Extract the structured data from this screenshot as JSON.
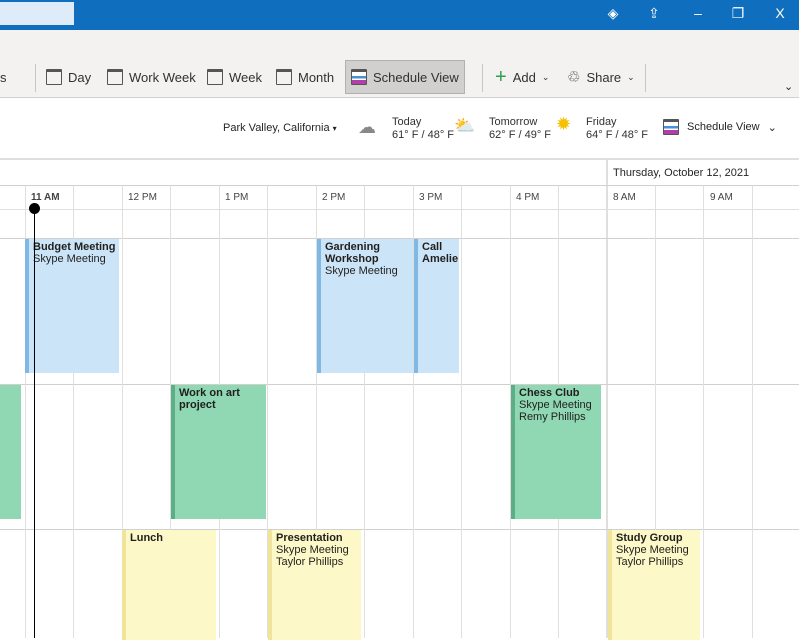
{
  "titlebar": {
    "icons": [
      "diamond-icon",
      "upload-icon",
      "minimize-icon",
      "restore-icon",
      "close-icon"
    ],
    "minimize": "–",
    "restore": "❐",
    "close": "X"
  },
  "ribbon": {
    "partial": "s",
    "day": "Day",
    "work_week": "Work Week",
    "week": "Week",
    "month": "Month",
    "schedule_view": "Schedule View",
    "add": "Add",
    "share": "Share"
  },
  "weather": {
    "location": "Park Valley, California",
    "days": [
      {
        "label": "Today",
        "temp": "61° F / 48° F",
        "icon": "cloud-icon"
      },
      {
        "label": "Tomorrow",
        "temp": "62° F / 49° F",
        "icon": "partly-sunny-icon"
      },
      {
        "label": "Friday",
        "temp": "64° F / 48° F",
        "icon": "sun-icon"
      }
    ],
    "view": "Schedule View"
  },
  "timeline": {
    "date": "Thursday, October 12, 2021",
    "hours": [
      "11 AM",
      "12 PM",
      "1 PM",
      "2 PM",
      "3 PM",
      "4 PM",
      "8 AM",
      "9 AM"
    ]
  },
  "events": [
    {
      "title": "Budget Meeting",
      "lines": [
        "Skype Meeting"
      ],
      "color": "#cce4f7"
    },
    {
      "title": "Gardening Workshop",
      "lines": [
        "Skype Meeting"
      ],
      "color": "#cce4f7"
    },
    {
      "title": "Call Amelie",
      "lines": [],
      "color": "#cce4f7"
    },
    {
      "title": "Work on art project",
      "lines": [],
      "color": "#8fd8b3"
    },
    {
      "title": "Chess Club",
      "lines": [
        "Skype Meeting",
        "Remy Phillips"
      ],
      "color": "#8fd8b3"
    },
    {
      "title": "Lunch",
      "lines": [],
      "color": "#fdf8c7"
    },
    {
      "title": "Presentation",
      "lines": [
        "Skype Meeting",
        "Taylor Phillips"
      ],
      "color": "#fdf8c7"
    },
    {
      "title": "Study Group",
      "lines": [
        "Skype Meeting",
        "Taylor Phillips"
      ],
      "color": "#fdf8c7"
    }
  ]
}
